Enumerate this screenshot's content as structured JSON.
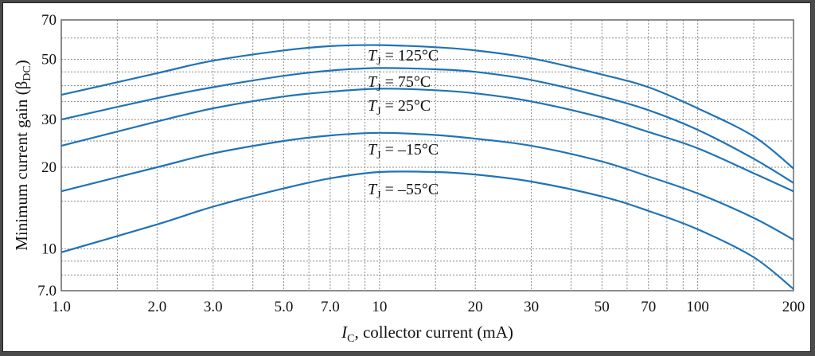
{
  "chart_data": {
    "type": "line",
    "xlabel": {
      "var": "I",
      "sub": "C",
      "rest": ", collector current (mA)"
    },
    "ylabel": {
      "main": "Minimum current gain (β",
      "sub": "DC",
      "end": ")"
    },
    "x_scale": "log",
    "y_scale": "log",
    "xlim": [
      1,
      200
    ],
    "ylim": [
      7,
      70
    ],
    "grid": true,
    "x_ticks": [
      {
        "v": 1,
        "label": "1.0"
      },
      {
        "v": 2,
        "label": "2.0"
      },
      {
        "v": 3,
        "label": "3.0"
      },
      {
        "v": 5,
        "label": "5.0"
      },
      {
        "v": 7,
        "label": "7.0"
      },
      {
        "v": 10,
        "label": "10"
      },
      {
        "v": 20,
        "label": "20"
      },
      {
        "v": 30,
        "label": "30"
      },
      {
        "v": 50,
        "label": "50"
      },
      {
        "v": 70,
        "label": "70"
      },
      {
        "v": 100,
        "label": "100"
      },
      {
        "v": 200,
        "label": "200"
      }
    ],
    "y_ticks": [
      {
        "v": 7,
        "label": "7.0"
      },
      {
        "v": 10,
        "label": "10"
      },
      {
        "v": 20,
        "label": "20"
      },
      {
        "v": 30,
        "label": "30"
      },
      {
        "v": 50,
        "label": "50"
      },
      {
        "v": 70,
        "label": "70"
      }
    ],
    "x_grid": [
      1,
      1.5,
      2,
      3,
      4,
      5,
      6,
      7,
      8,
      9,
      10,
      15,
      20,
      30,
      40,
      50,
      60,
      70,
      80,
      90,
      100,
      150,
      200
    ],
    "y_grid": [
      7,
      8,
      9,
      10,
      15,
      20,
      25,
      30,
      35,
      40,
      45,
      50,
      60,
      70
    ],
    "line_color": "#1f73b7",
    "series": [
      {
        "name": "T_J = 125°C",
        "label_var": "T",
        "label_sub": "J",
        "label_rest": " = 125°C",
        "x": [
          1,
          2,
          3,
          5,
          7,
          10,
          15,
          20,
          30,
          50,
          70,
          100,
          150,
          200
        ],
        "y": [
          37,
          44.5,
          49.5,
          54,
          56,
          56.5,
          55.5,
          54,
          50.5,
          44,
          39.5,
          33,
          26,
          19.8
        ]
      },
      {
        "name": "T_J = 75°C",
        "label_var": "T",
        "label_sub": "J",
        "label_rest": " = 75°C",
        "x": [
          1,
          2,
          3,
          5,
          7,
          10,
          15,
          20,
          30,
          50,
          70,
          100,
          150,
          200
        ],
        "y": [
          30,
          36,
          39.5,
          43.5,
          45.5,
          46.5,
          46,
          45,
          42,
          36.5,
          32.5,
          27.5,
          21.5,
          17.5
        ]
      },
      {
        "name": "T_J = 25°C",
        "label_var": "T",
        "label_sub": "J",
        "label_rest": " = 25°C",
        "x": [
          1,
          2,
          3,
          5,
          7,
          10,
          15,
          20,
          30,
          50,
          70,
          100,
          150,
          200
        ],
        "y": [
          24,
          29.5,
          33,
          36.5,
          38,
          39,
          38.5,
          37.5,
          35,
          30.5,
          27,
          23.5,
          19,
          16.3
        ]
      },
      {
        "name": "T_J = -15°C",
        "label_var": "T",
        "label_sub": "J",
        "label_rest": " = –15°C",
        "x": [
          1,
          2,
          3,
          5,
          7,
          10,
          15,
          20,
          30,
          50,
          70,
          100,
          150,
          200
        ],
        "y": [
          16.3,
          20,
          22.5,
          25,
          26.2,
          26.8,
          26.3,
          25.5,
          24,
          21,
          18.5,
          16,
          13,
          10.8
        ]
      },
      {
        "name": "T_J = -55°C",
        "label_var": "T",
        "label_sub": "J",
        "label_rest": " = –55°C",
        "x": [
          1,
          2,
          3,
          5,
          7,
          10,
          15,
          20,
          30,
          50,
          70,
          100,
          150,
          200
        ],
        "y": [
          9.7,
          12.3,
          14.3,
          16.7,
          18.2,
          19.2,
          19.2,
          18.8,
          17.7,
          15.6,
          13.8,
          11.8,
          9.3,
          7.1
        ]
      }
    ]
  }
}
